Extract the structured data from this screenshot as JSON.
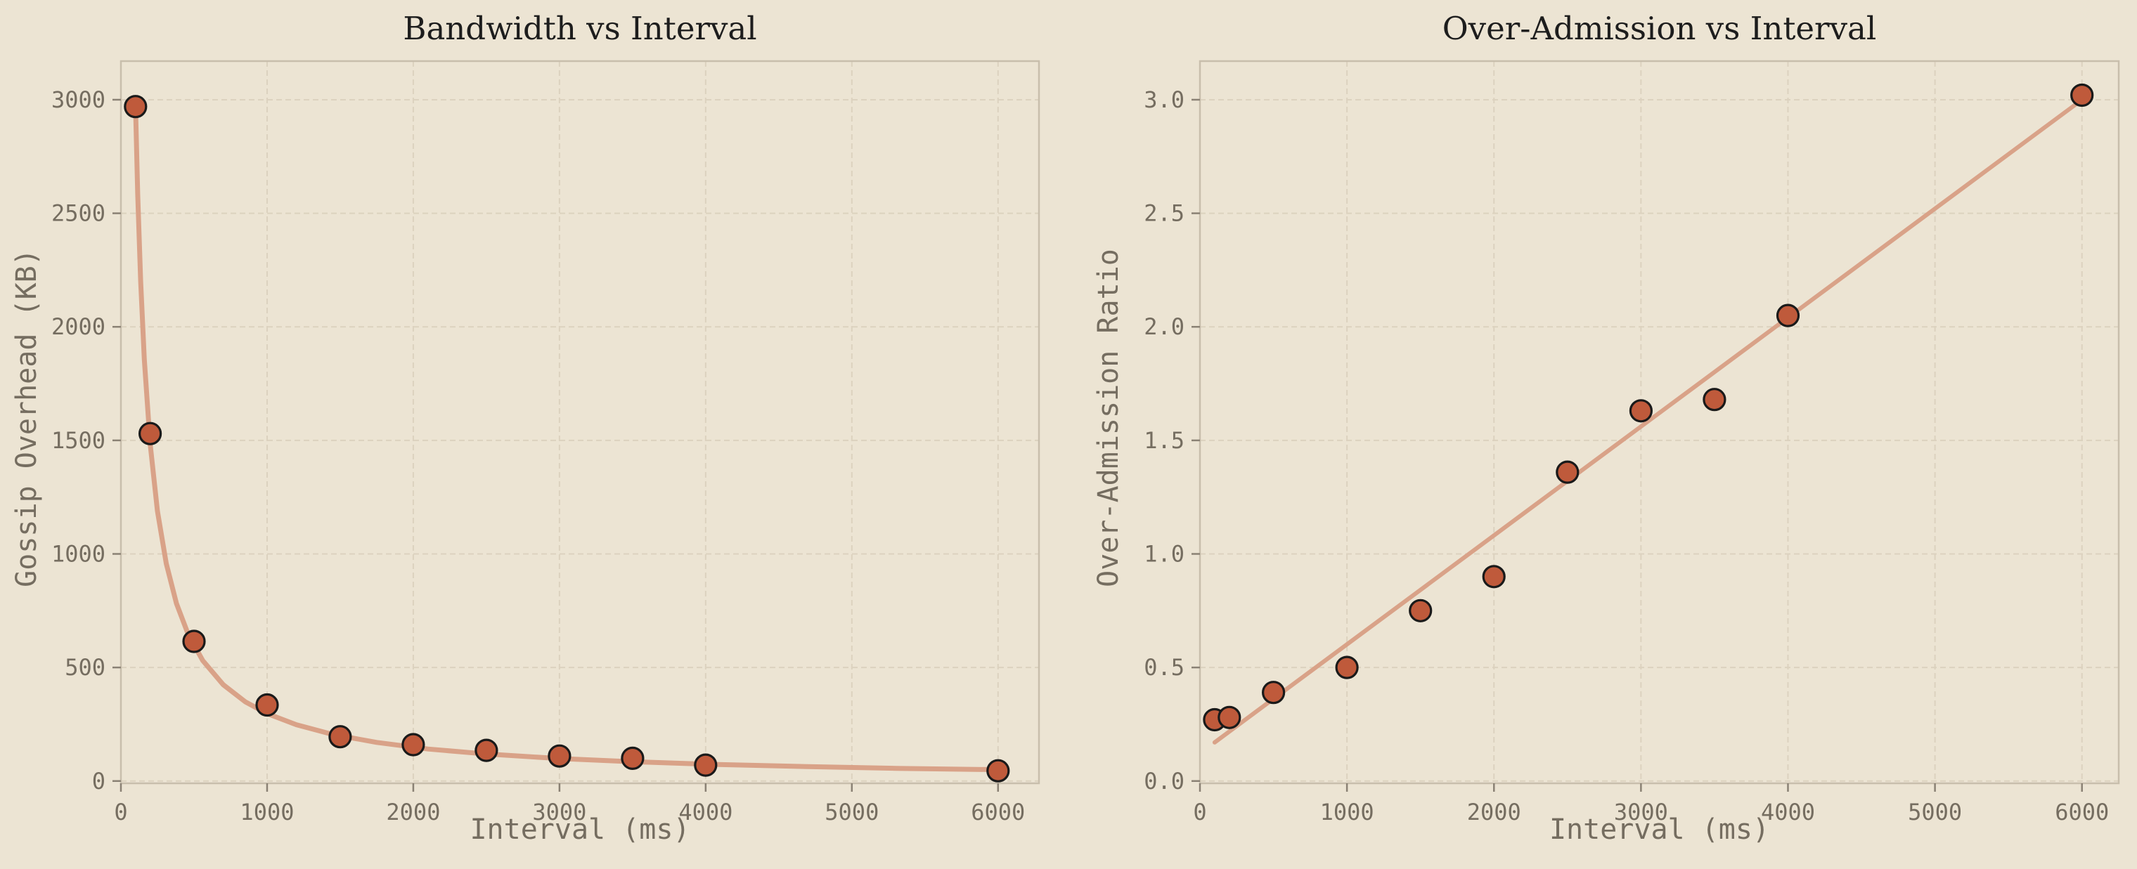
{
  "figure": {
    "background": "#ece4d3"
  },
  "style": {
    "background": "#ece4d3",
    "marker_fill": "#bf5a3b",
    "marker_edge": "#1a1a1a",
    "fit_line_color": "#d9a288",
    "grid_color": "#dcd2bf",
    "spine_color": "#c8beac",
    "tick_color": "#8a8174",
    "label_color": "#756d60",
    "title_color": "#1d1d1d"
  },
  "chart_data": [
    {
      "type": "scatter",
      "title": "Bandwidth vs Interval",
      "xlabel": "Interval (ms)",
      "ylabel": "Gossip Overhead (KB)",
      "xlim": [
        0,
        6280
      ],
      "ylim": [
        -10,
        3170
      ],
      "grid": true,
      "legend": null,
      "xticks": {
        "values": [
          0,
          1000,
          2000,
          3000,
          4000,
          5000,
          6000
        ],
        "labels": [
          "0",
          "1000",
          "2000",
          "3000",
          "4000",
          "5000",
          "6000"
        ]
      },
      "yticks": {
        "values": [
          0,
          500,
          1000,
          1500,
          2000,
          2500,
          3000
        ],
        "labels": [
          "0",
          "500",
          "1000",
          "1500",
          "2000",
          "2500",
          "3000"
        ]
      },
      "points": [
        [
          100,
          2970
        ],
        [
          200,
          1530
        ],
        [
          500,
          615
        ],
        [
          1000,
          335
        ],
        [
          1500,
          195
        ],
        [
          2000,
          160
        ],
        [
          2500,
          135
        ],
        [
          3000,
          110
        ],
        [
          3500,
          100
        ],
        [
          4000,
          70
        ],
        [
          6000,
          45
        ]
      ],
      "fit_line": [
        [
          100,
          2970
        ],
        [
          115,
          2583
        ],
        [
          135,
          2200
        ],
        [
          160,
          1856
        ],
        [
          200,
          1485
        ],
        [
          250,
          1188
        ],
        [
          310,
          958
        ],
        [
          380,
          782
        ],
        [
          460,
          646
        ],
        [
          560,
          530
        ],
        [
          700,
          424
        ],
        [
          850,
          349
        ],
        [
          1000,
          297
        ],
        [
          1200,
          248
        ],
        [
          1450,
          205
        ],
        [
          1750,
          170
        ],
        [
          2100,
          141
        ],
        [
          2500,
          119
        ],
        [
          3000,
          99
        ],
        [
          3500,
          85
        ],
        [
          4000,
          74
        ],
        [
          4600,
          65
        ],
        [
          5300,
          56
        ],
        [
          6000,
          50
        ]
      ]
    },
    {
      "type": "scatter",
      "title": "Over-Admission vs Interval",
      "xlabel": "Interval (ms)",
      "ylabel": "Over-Admission Ratio",
      "xlim": [
        0,
        6250
      ],
      "ylim": [
        -0.01,
        3.17
      ],
      "grid": true,
      "legend": null,
      "xticks": {
        "values": [
          0,
          1000,
          2000,
          3000,
          4000,
          5000,
          6000
        ],
        "labels": [
          "0",
          "1000",
          "2000",
          "3000",
          "4000",
          "5000",
          "6000"
        ]
      },
      "yticks": {
        "values": [
          0,
          0.5,
          1,
          1.5,
          2,
          2.5,
          3
        ],
        "labels": [
          "0.0",
          "0.5",
          "1.0",
          "1.5",
          "2.0",
          "2.5",
          "3.0"
        ]
      },
      "points": [
        [
          100,
          0.27
        ],
        [
          200,
          0.28
        ],
        [
          500,
          0.39
        ],
        [
          1000,
          0.5
        ],
        [
          1500,
          0.75
        ],
        [
          2000,
          0.9
        ],
        [
          2500,
          1.36
        ],
        [
          3000,
          1.63
        ],
        [
          3500,
          1.68
        ],
        [
          4000,
          2.05
        ],
        [
          6000,
          3.02
        ]
      ],
      "fit_line": [
        [
          100,
          0.17
        ],
        [
          6000,
          3.0
        ]
      ]
    }
  ]
}
